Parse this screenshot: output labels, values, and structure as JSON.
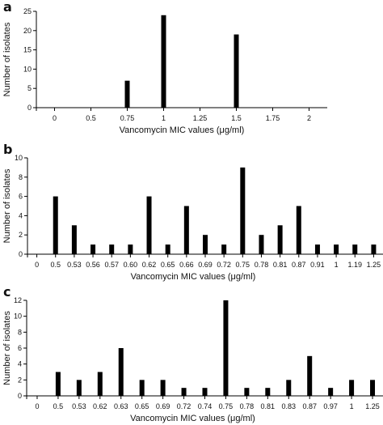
{
  "chart_data": [
    {
      "panel_label": "a",
      "type": "bar",
      "title": "",
      "xlabel": "Vancomycin MIC values (μg/ml)",
      "ylabel": "Number of isolates",
      "ylim": [
        0,
        25
      ],
      "x_tick_labels": [
        "0",
        "0.5",
        "0.75",
        "1",
        "1.25",
        "1.5",
        "1.75",
        "2"
      ],
      "y_ticks": [
        "0",
        "5",
        "10",
        "15",
        "20",
        "25"
      ],
      "categories": [
        "0",
        "0.5",
        "0.75",
        "1",
        "1.25",
        "1.5",
        "1.75",
        "2"
      ],
      "values": [
        0,
        0,
        7,
        24,
        0,
        19,
        0,
        0
      ],
      "grid": false,
      "color": "#000000"
    },
    {
      "panel_label": "b",
      "type": "bar",
      "title": "",
      "xlabel": "Vancomycin MIC values (μg/ml)",
      "ylabel": "Number of isolates",
      "ylim": [
        0,
        10
      ],
      "x_tick_labels": [
        "0",
        "0.5",
        "0.53",
        "0.56",
        "0.57",
        "0.60",
        "0.62",
        "0.65",
        "0.66",
        "0.69",
        "0.72",
        "0.75",
        "0.78",
        "0.81",
        "0.87",
        "0.91",
        "1",
        "1.19",
        "1.25"
      ],
      "y_ticks": [
        "0",
        "2",
        "4",
        "6",
        "8",
        "10"
      ],
      "categories": [
        "0",
        "0.5",
        "0.53",
        "0.56",
        "0.57",
        "0.60",
        "0.62",
        "0.65",
        "0.66",
        "0.69",
        "0.72",
        "0.75",
        "0.78",
        "0.81",
        "0.87",
        "0.91",
        "1",
        "1.19",
        "1.25"
      ],
      "values": [
        0,
        6,
        3,
        1,
        1,
        1,
        6,
        1,
        5,
        2,
        1,
        9,
        2,
        3,
        5,
        1,
        1,
        1,
        1
      ],
      "grid": false,
      "color": "#000000"
    },
    {
      "panel_label": "c",
      "type": "bar",
      "title": "",
      "xlabel": "Vancomycin MIC values (μg/ml)",
      "ylabel": "Number of isolates",
      "ylim": [
        0,
        12
      ],
      "x_tick_labels": [
        "0",
        "0.5",
        "0.53",
        "0.62",
        "0.63",
        "0.65",
        "0.69",
        "0.72",
        "0.74",
        "0.75",
        "0.78",
        "0.81",
        "0.83",
        "0.87",
        "0.97",
        "1",
        "1.25"
      ],
      "y_ticks": [
        "0",
        "2",
        "4",
        "6",
        "8",
        "10",
        "12"
      ],
      "categories": [
        "0",
        "0.5",
        "0.53",
        "0.62",
        "0.63",
        "0.65",
        "0.69",
        "0.72",
        "0.74",
        "0.75",
        "0.78",
        "0.81",
        "0.83",
        "0.87",
        "0.97",
        "1",
        "1.25"
      ],
      "values": [
        0,
        3,
        2,
        3,
        6,
        2,
        2,
        1,
        1,
        12,
        1,
        1,
        2,
        5,
        1,
        2,
        2
      ],
      "grid": false,
      "color": "#000000"
    }
  ]
}
